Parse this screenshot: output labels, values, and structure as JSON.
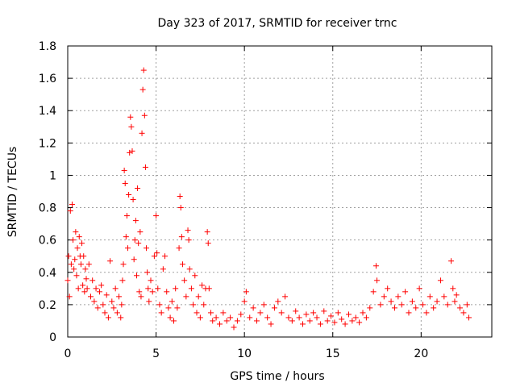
{
  "chart_data": {
    "type": "scatter",
    "title": "Day 323 of 2017, SRMTID for receiver trnc",
    "xlabel": "GPS time / hours",
    "ylabel": "SRMTID / TECUs",
    "xlim": [
      0,
      24
    ],
    "ylim": [
      0,
      1.8
    ],
    "x_ticks": [
      0,
      5,
      10,
      15,
      20
    ],
    "x_tick_labels": [
      "0",
      "5",
      "10",
      "15",
      "20"
    ],
    "y_ticks": [
      0,
      0.2,
      0.4,
      0.6,
      0.8,
      1,
      1.2,
      1.4,
      1.6,
      1.8
    ],
    "y_tick_labels": [
      "0",
      "0.2",
      "0.4",
      "0.6",
      "0.8",
      "1",
      "1.2",
      "1.4",
      "1.6",
      "1.8"
    ],
    "grid": true,
    "marker": "plus",
    "color": "#ff0000",
    "series": [
      {
        "name": "SRMTID",
        "points": [
          [
            0.0,
            0.35
          ],
          [
            0.05,
            0.5
          ],
          [
            0.1,
            0.25
          ],
          [
            0.15,
            0.78
          ],
          [
            0.2,
            0.45
          ],
          [
            0.25,
            0.82
          ],
          [
            0.3,
            0.6
          ],
          [
            0.35,
            0.42
          ],
          [
            0.4,
            0.48
          ],
          [
            0.45,
            0.65
          ],
          [
            0.5,
            0.38
          ],
          [
            0.55,
            0.55
          ],
          [
            0.6,
            0.3
          ],
          [
            0.65,
            0.62
          ],
          [
            0.7,
            0.5
          ],
          [
            0.75,
            0.45
          ],
          [
            0.8,
            0.58
          ],
          [
            0.85,
            0.32
          ],
          [
            0.9,
            0.5
          ],
          [
            0.95,
            0.28
          ],
          [
            1.0,
            0.42
          ],
          [
            1.05,
            0.36
          ],
          [
            1.1,
            0.3
          ],
          [
            1.2,
            0.45
          ],
          [
            1.3,
            0.25
          ],
          [
            1.4,
            0.35
          ],
          [
            1.5,
            0.22
          ],
          [
            1.6,
            0.3
          ],
          [
            1.7,
            0.18
          ],
          [
            1.8,
            0.28
          ],
          [
            1.9,
            0.32
          ],
          [
            2.0,
            0.2
          ],
          [
            2.1,
            0.15
          ],
          [
            2.2,
            0.26
          ],
          [
            2.3,
            0.12
          ],
          [
            2.4,
            0.47
          ],
          [
            2.5,
            0.22
          ],
          [
            2.6,
            0.18
          ],
          [
            2.7,
            0.3
          ],
          [
            2.8,
            0.15
          ],
          [
            2.9,
            0.25
          ],
          [
            3.0,
            0.12
          ],
          [
            3.05,
            0.2
          ],
          [
            3.1,
            0.35
          ],
          [
            3.15,
            0.45
          ],
          [
            3.2,
            1.03
          ],
          [
            3.25,
            0.95
          ],
          [
            3.3,
            0.62
          ],
          [
            3.35,
            0.75
          ],
          [
            3.4,
            0.55
          ],
          [
            3.45,
            0.88
          ],
          [
            3.5,
            1.14
          ],
          [
            3.55,
            1.36
          ],
          [
            3.6,
            1.3
          ],
          [
            3.65,
            1.15
          ],
          [
            3.7,
            0.85
          ],
          [
            3.75,
            0.48
          ],
          [
            3.8,
            0.6
          ],
          [
            3.85,
            0.72
          ],
          [
            3.9,
            0.38
          ],
          [
            3.95,
            0.92
          ],
          [
            4.0,
            0.58
          ],
          [
            4.05,
            0.28
          ],
          [
            4.1,
            0.65
          ],
          [
            4.15,
            0.25
          ],
          [
            4.2,
            1.26
          ],
          [
            4.25,
            1.53
          ],
          [
            4.3,
            1.65
          ],
          [
            4.35,
            1.37
          ],
          [
            4.4,
            1.05
          ],
          [
            4.45,
            0.55
          ],
          [
            4.5,
            0.4
          ],
          [
            4.55,
            0.3
          ],
          [
            4.6,
            0.22
          ],
          [
            4.7,
            0.35
          ],
          [
            4.8,
            0.28
          ],
          [
            4.9,
            0.5
          ],
          [
            5.0,
            0.75
          ],
          [
            5.05,
            0.52
          ],
          [
            5.1,
            0.3
          ],
          [
            5.2,
            0.2
          ],
          [
            5.3,
            0.15
          ],
          [
            5.4,
            0.42
          ],
          [
            5.5,
            0.5
          ],
          [
            5.6,
            0.28
          ],
          [
            5.7,
            0.18
          ],
          [
            5.8,
            0.12
          ],
          [
            5.9,
            0.22
          ],
          [
            6.0,
            0.1
          ],
          [
            6.1,
            0.3
          ],
          [
            6.2,
            0.18
          ],
          [
            6.3,
            0.55
          ],
          [
            6.35,
            0.87
          ],
          [
            6.4,
            0.8
          ],
          [
            6.45,
            0.62
          ],
          [
            6.5,
            0.45
          ],
          [
            6.6,
            0.35
          ],
          [
            6.7,
            0.25
          ],
          [
            6.8,
            0.66
          ],
          [
            6.85,
            0.6
          ],
          [
            6.9,
            0.42
          ],
          [
            7.0,
            0.3
          ],
          [
            7.1,
            0.2
          ],
          [
            7.2,
            0.38
          ],
          [
            7.3,
            0.15
          ],
          [
            7.4,
            0.25
          ],
          [
            7.5,
            0.12
          ],
          [
            7.6,
            0.32
          ],
          [
            7.7,
            0.2
          ],
          [
            7.8,
            0.3
          ],
          [
            7.9,
            0.65
          ],
          [
            7.95,
            0.58
          ],
          [
            8.0,
            0.3
          ],
          [
            8.1,
            0.15
          ],
          [
            8.2,
            0.1
          ],
          [
            8.4,
            0.12
          ],
          [
            8.6,
            0.08
          ],
          [
            8.8,
            0.15
          ],
          [
            9.0,
            0.1
          ],
          [
            9.2,
            0.12
          ],
          [
            9.4,
            0.06
          ],
          [
            9.6,
            0.1
          ],
          [
            9.8,
            0.14
          ],
          [
            10.0,
            0.22
          ],
          [
            10.1,
            0.28
          ],
          [
            10.3,
            0.12
          ],
          [
            10.5,
            0.18
          ],
          [
            10.7,
            0.1
          ],
          [
            10.9,
            0.15
          ],
          [
            11.1,
            0.2
          ],
          [
            11.3,
            0.12
          ],
          [
            11.5,
            0.08
          ],
          [
            11.7,
            0.18
          ],
          [
            11.9,
            0.22
          ],
          [
            12.1,
            0.15
          ],
          [
            12.3,
            0.25
          ],
          [
            12.5,
            0.12
          ],
          [
            12.7,
            0.1
          ],
          [
            12.9,
            0.16
          ],
          [
            13.1,
            0.12
          ],
          [
            13.3,
            0.08
          ],
          [
            13.5,
            0.14
          ],
          [
            13.7,
            0.1
          ],
          [
            13.9,
            0.15
          ],
          [
            14.1,
            0.12
          ],
          [
            14.3,
            0.08
          ],
          [
            14.5,
            0.16
          ],
          [
            14.7,
            0.1
          ],
          [
            14.9,
            0.13
          ],
          [
            15.1,
            0.09
          ],
          [
            15.3,
            0.15
          ],
          [
            15.5,
            0.11
          ],
          [
            15.7,
            0.08
          ],
          [
            15.9,
            0.14
          ],
          [
            16.1,
            0.1
          ],
          [
            16.3,
            0.12
          ],
          [
            16.5,
            0.09
          ],
          [
            16.7,
            0.15
          ],
          [
            16.9,
            0.12
          ],
          [
            17.1,
            0.18
          ],
          [
            17.3,
            0.28
          ],
          [
            17.45,
            0.44
          ],
          [
            17.5,
            0.35
          ],
          [
            17.7,
            0.2
          ],
          [
            17.9,
            0.25
          ],
          [
            18.1,
            0.3
          ],
          [
            18.3,
            0.22
          ],
          [
            18.5,
            0.18
          ],
          [
            18.7,
            0.25
          ],
          [
            18.9,
            0.2
          ],
          [
            19.1,
            0.28
          ],
          [
            19.3,
            0.15
          ],
          [
            19.5,
            0.22
          ],
          [
            19.7,
            0.18
          ],
          [
            19.9,
            0.3
          ],
          [
            20.1,
            0.2
          ],
          [
            20.3,
            0.15
          ],
          [
            20.5,
            0.25
          ],
          [
            20.7,
            0.18
          ],
          [
            20.9,
            0.22
          ],
          [
            21.1,
            0.35
          ],
          [
            21.3,
            0.25
          ],
          [
            21.5,
            0.2
          ],
          [
            21.7,
            0.47
          ],
          [
            21.8,
            0.3
          ],
          [
            21.9,
            0.22
          ],
          [
            22.0,
            0.26
          ],
          [
            22.2,
            0.18
          ],
          [
            22.4,
            0.15
          ],
          [
            22.6,
            0.2
          ],
          [
            22.7,
            0.12
          ]
        ]
      }
    ]
  }
}
